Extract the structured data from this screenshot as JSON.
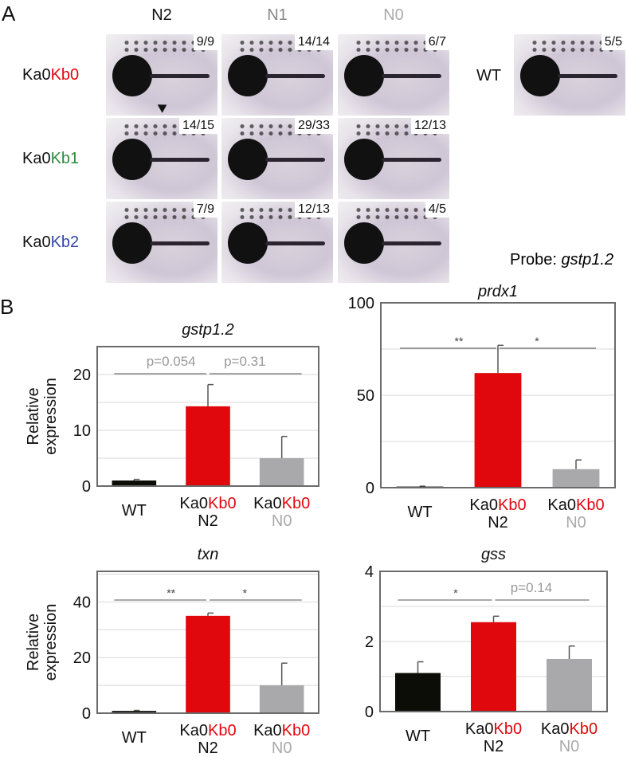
{
  "panel_a": {
    "letter": "A",
    "columns": [
      "N2",
      "N1",
      "N0"
    ],
    "column_colors": [
      "#111111",
      "#888888",
      "#aaaaaa"
    ],
    "rows": [
      {
        "prefix": "Ka0",
        "suffix": "Kb0",
        "suffix_color": "#e0070d",
        "fractions": [
          "9/9",
          "14/14",
          "6/7"
        ]
      },
      {
        "prefix": "Ka0",
        "suffix": "Kb1",
        "suffix_color": "#2e8b3e",
        "fractions": [
          "14/15",
          "29/33",
          "12/13"
        ]
      },
      {
        "prefix": "Ka0",
        "suffix": "Kb2",
        "suffix_color": "#3346a8",
        "fractions": [
          "7/9",
          "12/13",
          "4/5"
        ]
      }
    ],
    "wt_label": "WT",
    "wt_fraction": "5/5",
    "probe_label": "Probe: ",
    "probe_gene": "gstp1.2"
  },
  "panel_b": {
    "letter": "B",
    "ylabel_line1": "Relative",
    "ylabel_line2": "expression"
  },
  "chart_data": [
    {
      "type": "bar",
      "title": "gstp1.2",
      "categories": [
        "WT",
        "Ka0Kb0 N2",
        "Ka0Kb0 N0"
      ],
      "values": [
        1.0,
        14.3,
        5.0
      ],
      "errors": [
        0.2,
        3.9,
        3.9
      ],
      "yticks": [
        0,
        10,
        20
      ],
      "ylim": [
        0,
        25
      ],
      "colors": [
        "#0d0d08",
        "#e0070d",
        "#a9a8aa"
      ],
      "comparisons": [
        {
          "label": "p=0.054",
          "from": 0,
          "to": 1,
          "sig": false
        },
        {
          "label": "p=0.31",
          "from": 1,
          "to": 2,
          "sig": false
        }
      ]
    },
    {
      "type": "bar",
      "title": "prdx1",
      "categories": [
        "WT",
        "Ka0Kb0 N2",
        "Ka0Kb0 N0"
      ],
      "values": [
        0.6,
        62,
        10
      ],
      "errors": [
        0.2,
        15,
        5
      ],
      "yticks": [
        0,
        50,
        100
      ],
      "ylim": [
        0,
        100
      ],
      "colors": [
        "#0d0d08",
        "#e0070d",
        "#a9a8aa"
      ],
      "comparisons": [
        {
          "label": "**",
          "from": 0,
          "to": 1,
          "sig": true
        },
        {
          "label": "*",
          "from": 1,
          "to": 2,
          "sig": true
        }
      ]
    },
    {
      "type": "bar",
      "title": "txn",
      "categories": [
        "WT",
        "Ka0Kb0 N2",
        "Ka0Kb0 N0"
      ],
      "values": [
        0.8,
        35,
        10
      ],
      "errors": [
        0.2,
        1,
        8
      ],
      "yticks": [
        0,
        20,
        40
      ],
      "ylim": [
        0,
        51
      ],
      "colors": [
        "#0d0d08",
        "#e0070d",
        "#a9a8aa"
      ],
      "comparisons": [
        {
          "label": "**",
          "from": 0,
          "to": 1,
          "sig": true
        },
        {
          "label": "*",
          "from": 1,
          "to": 2,
          "sig": true
        }
      ]
    },
    {
      "type": "bar",
      "title": "gss",
      "categories": [
        "WT",
        "Ka0Kb0 N2",
        "Ka0Kb0 N0"
      ],
      "values": [
        1.1,
        2.55,
        1.5
      ],
      "errors": [
        0.32,
        0.17,
        0.37
      ],
      "yticks": [
        0,
        2,
        4
      ],
      "ylim": [
        0,
        4
      ],
      "colors": [
        "#0d0d08",
        "#e0070d",
        "#a9a8aa"
      ],
      "comparisons": [
        {
          "label": "*",
          "from": 0,
          "to": 1,
          "sig": true
        },
        {
          "label": "p=0.14",
          "from": 1,
          "to": 2,
          "sig": false
        }
      ]
    }
  ],
  "xlabels": {
    "wt": "WT",
    "prefix": "Ka0",
    "suffix": "Kb0",
    "n2": "N2",
    "n0": "N0"
  }
}
